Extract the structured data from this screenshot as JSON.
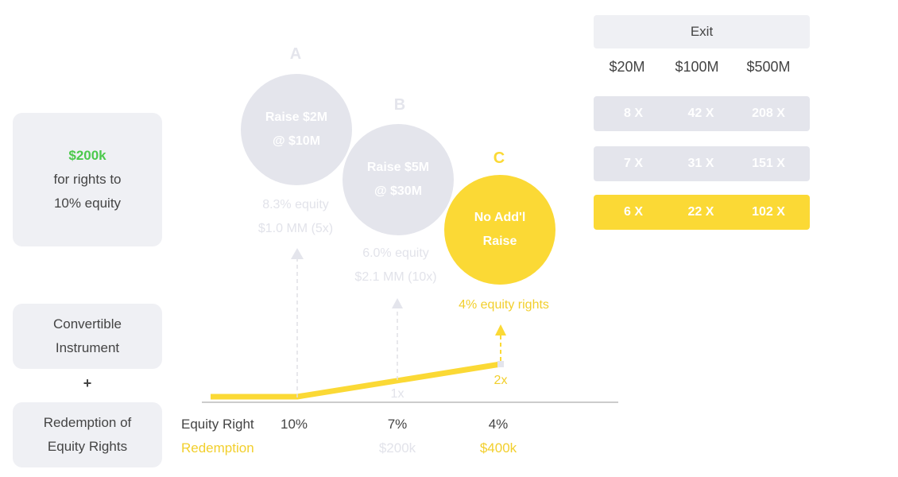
{
  "investment": {
    "amount": "$200k",
    "line2": "for rights to",
    "line3": "10% equity"
  },
  "instrument": {
    "line1": "Convertible",
    "line2": "Instrument"
  },
  "plus": "+",
  "redemption_card": {
    "line1": "Redemption of",
    "line2": "Equity Rights"
  },
  "scenarios": [
    {
      "letter": "A",
      "line1": "Raise $2M",
      "line2": "@ $10M",
      "note1": "8.3% equity",
      "note2": "$1.0 MM (5x)"
    },
    {
      "letter": "B",
      "line1": "Raise $5M",
      "line2": "@ $30M",
      "note1": "6.0% equity",
      "note2": "$2.1 MM (10x)"
    },
    {
      "letter": "C",
      "line1": "No Add'l",
      "line2": "Raise",
      "note1": "4% equity rights"
    }
  ],
  "axis": {
    "equity_right_label": "Equity Right",
    "redemption_label": "Redemption",
    "ticks": [
      {
        "equity": "10%",
        "redemption": "",
        "multiple": ""
      },
      {
        "equity": "7%",
        "redemption": "$200k",
        "multiple": "1x"
      },
      {
        "equity": "4%",
        "redemption": "$400k",
        "multiple": "2x"
      }
    ]
  },
  "exit_table": {
    "header": "Exit",
    "columns": [
      "$20M",
      "$100M",
      "$500M"
    ],
    "rows": [
      {
        "values": [
          "8 X",
          "42 X",
          "208 X"
        ],
        "highlight": false
      },
      {
        "values": [
          "7 X",
          "31 X",
          "151 X"
        ],
        "highlight": false
      },
      {
        "values": [
          "6 X",
          "22 X",
          "102 X"
        ],
        "highlight": true
      }
    ]
  },
  "colors": {
    "yellow": "#fbd935",
    "grey": "#e4e5ec",
    "green": "#4cc94c",
    "text": "#444444"
  }
}
